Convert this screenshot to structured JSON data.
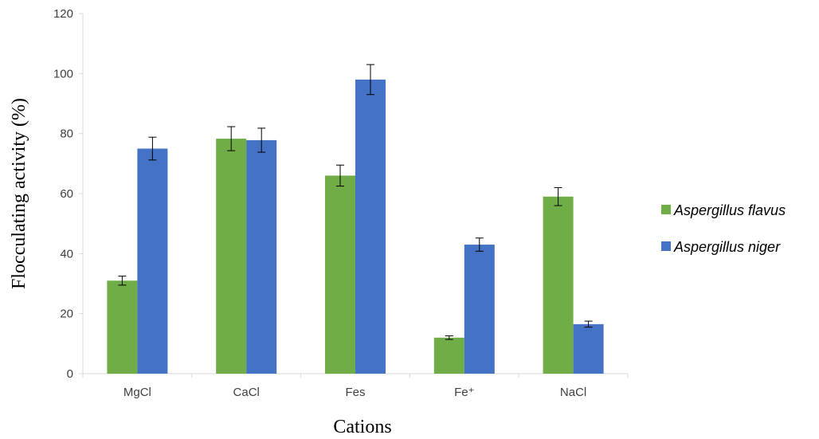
{
  "chart_data": {
    "type": "bar",
    "title": "",
    "xlabel": "Cations",
    "ylabel": "Flocculating activity (%)",
    "ylim": [
      0,
      120
    ],
    "yticks": [
      0,
      20,
      40,
      60,
      80,
      100,
      120
    ],
    "categories": [
      "MgCl",
      "CaCl",
      "Fes",
      "Fe⁺",
      "NaCl"
    ],
    "series": [
      {
        "name": "Aspergillus flavus",
        "color": "#70ad47",
        "values": [
          31,
          78.3,
          66,
          12,
          59
        ],
        "errors": [
          1.5,
          4,
          3.5,
          0.6,
          3
        ]
      },
      {
        "name": "Aspergillus niger",
        "color": "#4472c4",
        "values": [
          75,
          77.8,
          98,
          43,
          16.5
        ],
        "errors": [
          3.8,
          4,
          5,
          2.2,
          1
        ]
      }
    ],
    "grid": false,
    "legend_position": "right"
  }
}
